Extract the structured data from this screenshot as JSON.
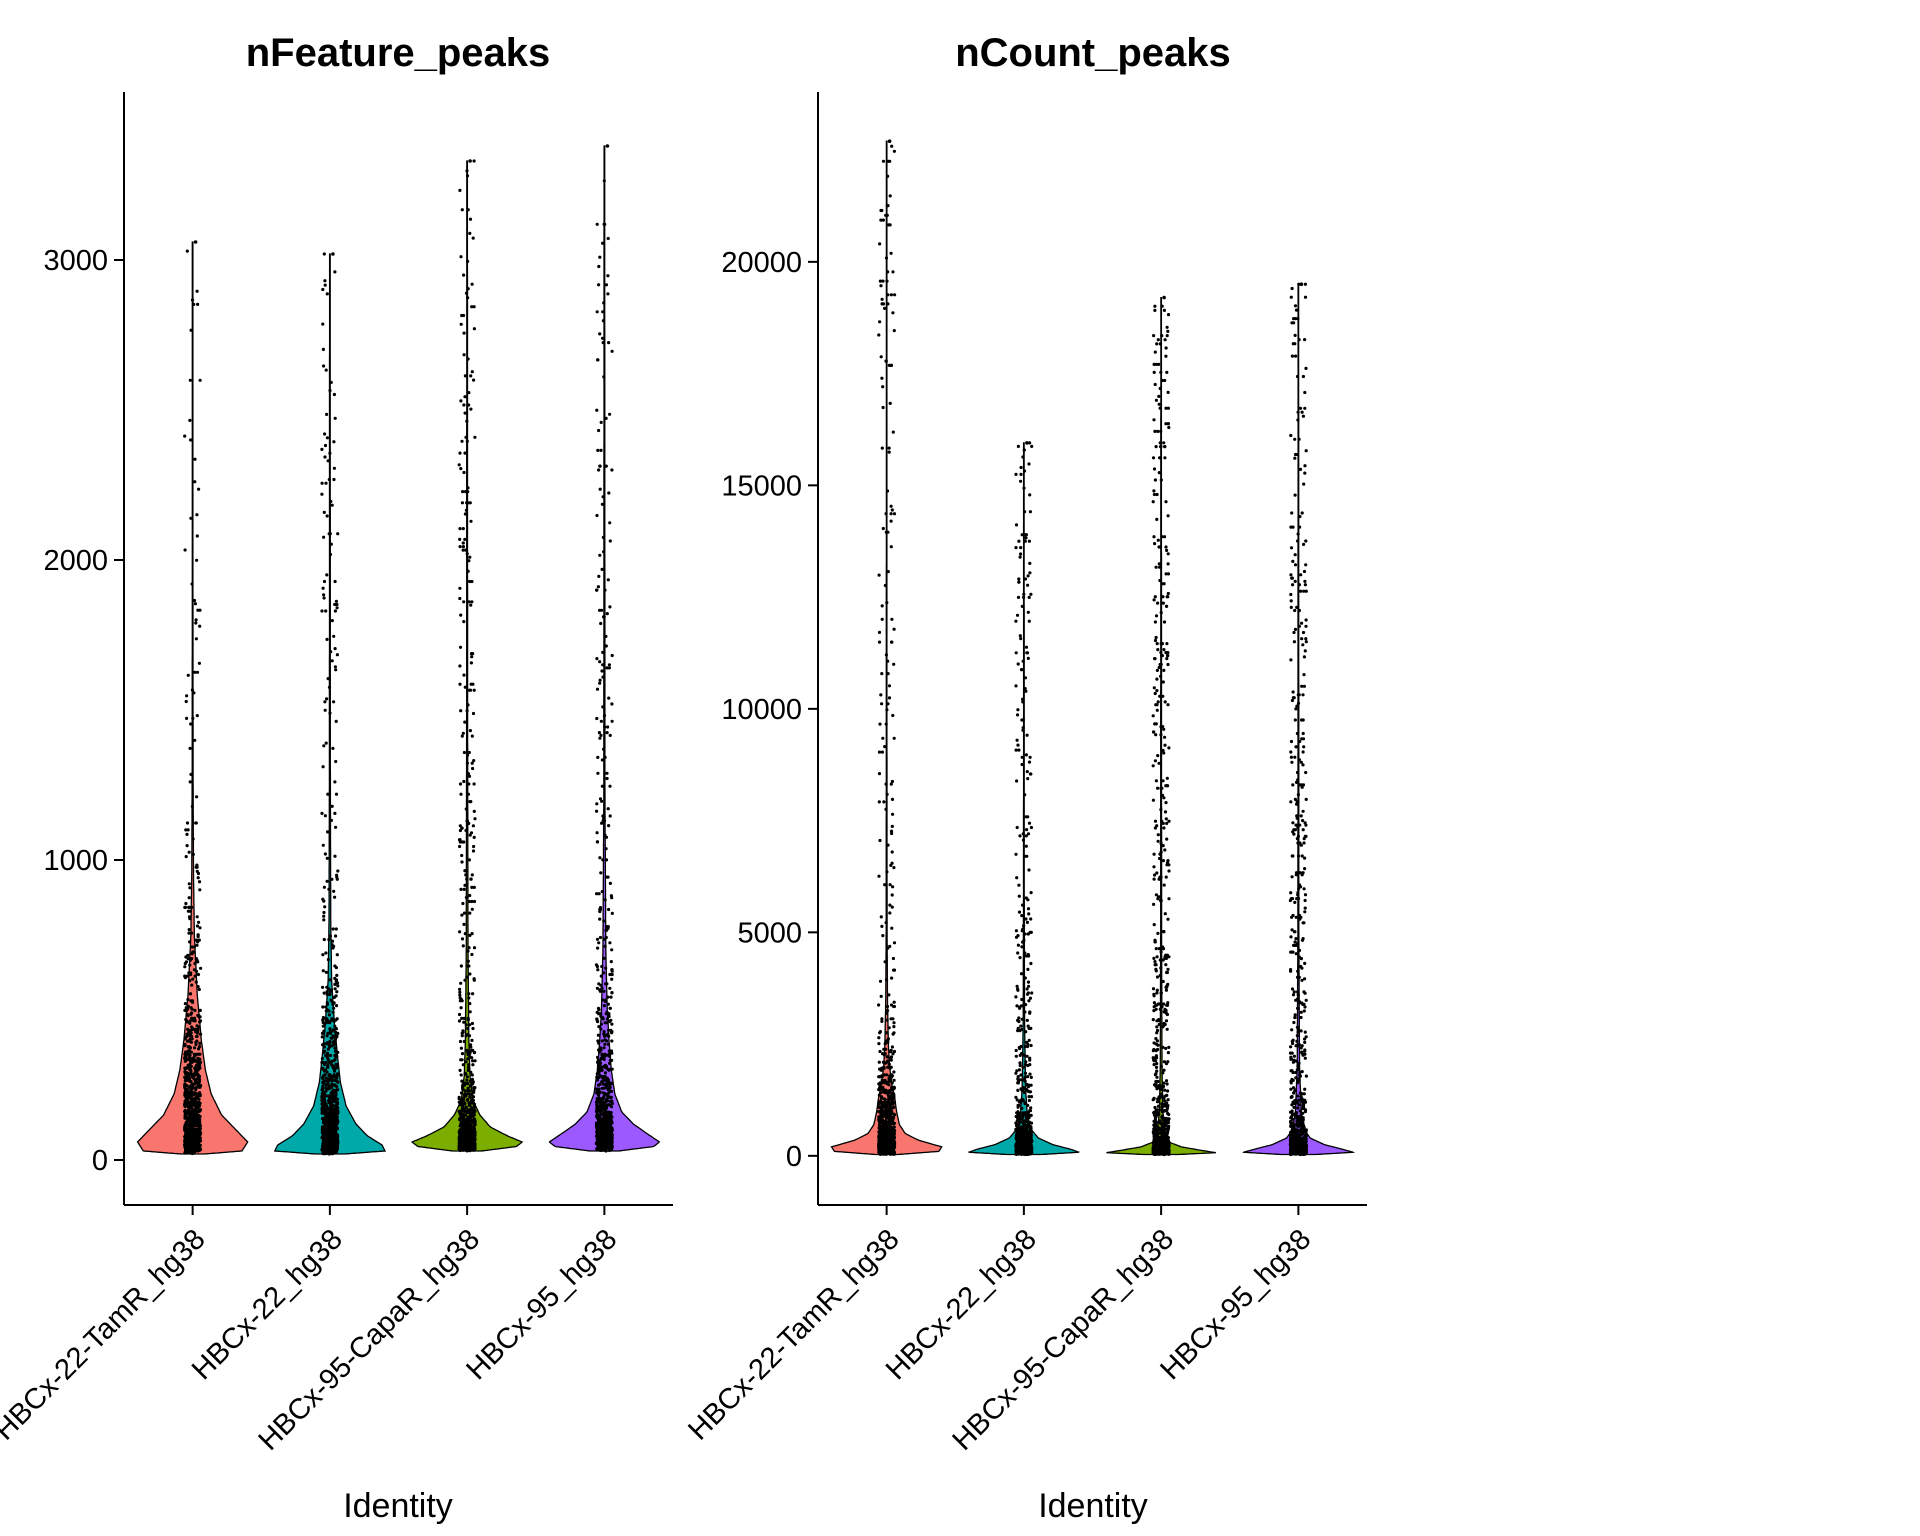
{
  "chart_data": [
    {
      "type": "violin",
      "title": "nFeature_peaks",
      "xlabel": "Identity",
      "ylabel": "",
      "ylim": [
        -150,
        3560
      ],
      "yticks": [
        0,
        1000,
        2000,
        3000
      ],
      "legend": "none",
      "categories": [
        "HBCx-22-TamR_hg38",
        "HBCx-22_hg38",
        "HBCx-95-CapaR_hg38",
        "HBCx-95_hg38"
      ],
      "colors": [
        "#F8766D",
        "#00A9A9",
        "#7CAE00",
        "#9B59FF"
      ],
      "series": [
        {
          "min": 20,
          "max": 3060,
          "density": [
            [
              20,
              0.2
            ],
            [
              30,
              0.85
            ],
            [
              60,
              0.95
            ],
            [
              100,
              0.75
            ],
            [
              150,
              0.5
            ],
            [
              220,
              0.32
            ],
            [
              300,
              0.22
            ],
            [
              400,
              0.15
            ],
            [
              550,
              0.08
            ],
            [
              750,
              0.03
            ],
            [
              950,
              0.015
            ],
            [
              1300,
              0.008
            ],
            [
              2000,
              0.005
            ],
            [
              3060,
              0.005
            ]
          ]
        },
        {
          "min": 20,
          "max": 3020,
          "density": [
            [
              20,
              0.25
            ],
            [
              30,
              0.95
            ],
            [
              50,
              0.9
            ],
            [
              80,
              0.65
            ],
            [
              120,
              0.45
            ],
            [
              180,
              0.28
            ],
            [
              260,
              0.18
            ],
            [
              350,
              0.13
            ],
            [
              450,
              0.08
            ],
            [
              600,
              0.03
            ],
            [
              800,
              0.015
            ],
            [
              1300,
              0.008
            ],
            [
              3020,
              0.005
            ]
          ]
        },
        {
          "min": 30,
          "max": 3330,
          "density": [
            [
              30,
              0.25
            ],
            [
              45,
              0.85
            ],
            [
              60,
              0.95
            ],
            [
              80,
              0.7
            ],
            [
              110,
              0.4
            ],
            [
              150,
              0.22
            ],
            [
              200,
              0.1
            ],
            [
              280,
              0.05
            ],
            [
              400,
              0.03
            ],
            [
              700,
              0.015
            ],
            [
              1500,
              0.008
            ],
            [
              3330,
              0.005
            ]
          ]
        },
        {
          "min": 30,
          "max": 3380,
          "density": [
            [
              30,
              0.25
            ],
            [
              45,
              0.85
            ],
            [
              60,
              0.95
            ],
            [
              90,
              0.72
            ],
            [
              120,
              0.5
            ],
            [
              160,
              0.3
            ],
            [
              220,
              0.18
            ],
            [
              300,
              0.12
            ],
            [
              400,
              0.08
            ],
            [
              500,
              0.05
            ],
            [
              700,
              0.025
            ],
            [
              1200,
              0.01
            ],
            [
              3380,
              0.005
            ]
          ]
        }
      ]
    },
    {
      "type": "violin",
      "title": "nCount_peaks",
      "xlabel": "Identity",
      "ylabel": "",
      "ylim": [
        -1100,
        23800
      ],
      "yticks": [
        0,
        5000,
        10000,
        15000,
        20000
      ],
      "legend": "none",
      "categories": [
        "HBCx-22-TamR_hg38",
        "HBCx-22_hg38",
        "HBCx-95-CapaR_hg38",
        "HBCx-95_hg38"
      ],
      "colors": [
        "#F8766D",
        "#00A9A9",
        "#7CAE00",
        "#9B59FF"
      ],
      "series": [
        {
          "min": 30,
          "max": 22700,
          "density": [
            [
              30,
              0.2
            ],
            [
              100,
              0.9
            ],
            [
              200,
              0.95
            ],
            [
              350,
              0.55
            ],
            [
              500,
              0.32
            ],
            [
              700,
              0.22
            ],
            [
              1000,
              0.17
            ],
            [
              1300,
              0.14
            ],
            [
              1600,
              0.09
            ],
            [
              2000,
              0.05
            ],
            [
              2500,
              0.03
            ],
            [
              3500,
              0.015
            ],
            [
              5000,
              0.008
            ],
            [
              10000,
              0.005
            ],
            [
              22700,
              0.004
            ]
          ]
        },
        {
          "min": 30,
          "max": 15950,
          "density": [
            [
              30,
              0.3
            ],
            [
              80,
              0.95
            ],
            [
              150,
              0.8
            ],
            [
              250,
              0.5
            ],
            [
              400,
              0.25
            ],
            [
              600,
              0.12
            ],
            [
              900,
              0.06
            ],
            [
              1500,
              0.03
            ],
            [
              3000,
              0.012
            ],
            [
              6000,
              0.006
            ],
            [
              15950,
              0.004
            ]
          ]
        },
        {
          "min": 30,
          "max": 19200,
          "density": [
            [
              30,
              0.3
            ],
            [
              70,
              0.95
            ],
            [
              120,
              0.7
            ],
            [
              200,
              0.35
            ],
            [
              300,
              0.15
            ],
            [
              500,
              0.07
            ],
            [
              1000,
              0.03
            ],
            [
              2000,
              0.015
            ],
            [
              5000,
              0.008
            ],
            [
              19200,
              0.004
            ]
          ]
        },
        {
          "min": 30,
          "max": 19500,
          "density": [
            [
              30,
              0.3
            ],
            [
              80,
              0.95
            ],
            [
              150,
              0.75
            ],
            [
              250,
              0.45
            ],
            [
              400,
              0.2
            ],
            [
              600,
              0.1
            ],
            [
              1000,
              0.05
            ],
            [
              2000,
              0.02
            ],
            [
              5000,
              0.008
            ],
            [
              19500,
              0.004
            ]
          ]
        }
      ]
    }
  ]
}
